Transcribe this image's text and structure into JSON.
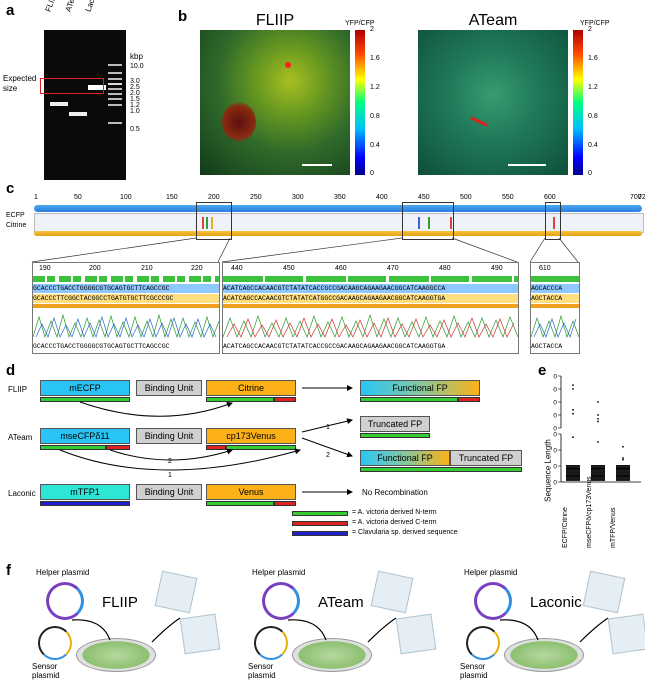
{
  "panels": {
    "a": "a",
    "b": "b",
    "c": "c",
    "d": "d",
    "e": "e",
    "f": "f"
  },
  "gel": {
    "lanes": [
      "FLIIP",
      "ATeam",
      "Laconic"
    ],
    "unit": "kbp",
    "ladder": [
      "10.0",
      "3.0",
      "2.5",
      "2.0",
      "1.5",
      "1.2",
      "1.0",
      "0.5"
    ],
    "expected_label": "Expected size"
  },
  "images": {
    "fliip_title": "FLIIP",
    "ateam_title": "ATeam",
    "ratio_label": "YFP/CFP",
    "ticks": [
      "2",
      "1.6",
      "1.2",
      "0.8",
      "0.4",
      "0"
    ]
  },
  "alignment": {
    "ruler": [
      "1",
      "50",
      "100",
      "150",
      "200",
      "250",
      "300",
      "350",
      "400",
      "450",
      "500",
      "550",
      "600",
      "700",
      "720"
    ],
    "tracks": [
      "ECFP",
      "Citrine"
    ],
    "zoom1": {
      "ticks": [
        "190",
        "200",
        "210",
        "220"
      ],
      "seq_top": "GCACCCTGACCTGGGGCGTGCAGTGCTTCAGCCGC",
      "seq_mid": "GCACCCTTCGGCTACGGCCTGATGTGCTTCGCCCGC",
      "seq_bot": "GCACCCTGACCTGGGGCGTGCAGTGCTTCAGCCGC"
    },
    "zoom2": {
      "ticks": [
        "440",
        "450",
        "460",
        "470",
        "480",
        "490"
      ],
      "seq_top": "ACATCAGCCACAACGTCTATATCACCGCCGACAAGCAGAAGAACGGCATCAAGGCCA",
      "seq_mid": "ACATCAGCCACAACGTCTATATCATGGCCGACAAGCAGAAGAACGGCATCAAGGTGA",
      "seq_bot": "ACATCAGCCACAACGTCTATATCACCGCCGACAAGCAGAAGAACGGCATCAAGGTGA"
    },
    "zoom3": {
      "ticks": [
        "610"
      ],
      "seq_top": "AGCACCCA",
      "seq_mid": "AGCTACCA",
      "seq_bot": "AGCTACCA"
    }
  },
  "schematic": {
    "rows": [
      {
        "name": "FLIIP",
        "left": "mECFP",
        "mid": "Binding Unit",
        "right": "Citrine"
      },
      {
        "name": "ATeam",
        "left": "mseCFPδ11",
        "mid": "Binding Unit",
        "right": "cp173Venus"
      },
      {
        "name": "Laconic",
        "left": "mTFP1",
        "mid": "Binding Unit",
        "right": "Venus"
      }
    ],
    "results": {
      "functional": "Functional FP",
      "truncated": "Truncated FP",
      "none": "No Recombination"
    },
    "arrow_nums": [
      "1",
      "2",
      "1",
      "2",
      "1"
    ],
    "legend": [
      "= A. victoria derived N-term",
      "= A. victoria derived C-term",
      "= Clavularia sp. derived sequence"
    ],
    "colors": {
      "cyan": "#29c5f6",
      "orange": "#fbb117",
      "teal": "#2ee6d6",
      "gray": "#d0d0d0",
      "green": "#33cc33",
      "red": "#dd2222",
      "blue": "#2222cc"
    }
  },
  "chart_data": {
    "type": "scatter",
    "categories": [
      "ECFP/Citrine",
      "mseCFPδ/cp173Venus",
      "mTFP/Venus"
    ],
    "ylabel": "Sequence Length",
    "yticks": [
      "0",
      "10",
      "20",
      "30",
      "50",
      "100",
      "150",
      "200",
      "250"
    ],
    "outliers": [
      {
        "category": "ECFP/Citrine",
        "values": [
          215,
          200,
          120,
          105,
          28
        ]
      },
      {
        "category": "mseCFPδ/cp173Venus",
        "values": [
          150,
          100,
          85,
          75,
          25
        ]
      },
      {
        "category": "mTFP/Venus",
        "values": [
          22,
          15,
          14
        ]
      }
    ]
  },
  "workflow": [
    {
      "helper": "Helper plasmid",
      "sensor": "Sensor plasmid",
      "name": "FLIIP"
    },
    {
      "helper": "Helper plasmid",
      "sensor": "Sensor plasmid",
      "name": "ATeam"
    },
    {
      "helper": "Helper plasmid",
      "sensor": "Sensor plasmid",
      "name": "Laconic"
    }
  ]
}
